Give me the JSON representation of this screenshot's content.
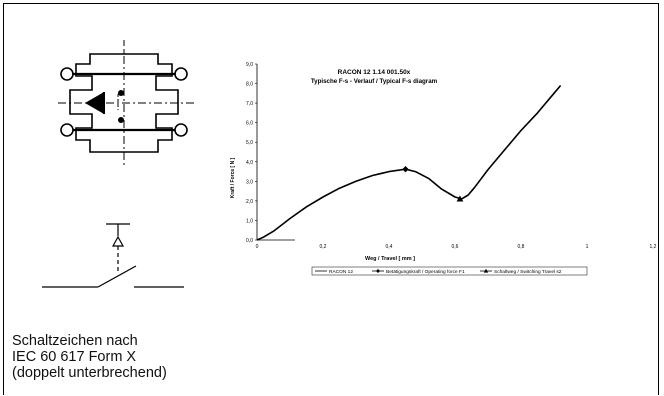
{
  "caption": {
    "lines": [
      "Schaltzeichen nach",
      "IEC 60 617 Form X",
      "(doppelt unterbrechend)"
    ]
  },
  "chart_data": {
    "type": "line",
    "title": "RACON 12  1.14 001.50x",
    "subtitle": "Typische F-s - Verlauf / Typical F-s diagram",
    "xlabel": "Weg / Travel [ mm ]",
    "ylabel": "Kraft / Force [ N ]",
    "xlim": [
      0,
      1.2
    ],
    "ylim": [
      0,
      9.0
    ],
    "x_ticks": [
      0,
      0.2,
      0.4,
      0.6,
      0.8,
      1,
      1.2
    ],
    "x_tick_labels": [
      "0",
      "0,2",
      "0,4",
      "0,6",
      "0,8",
      "1",
      "1,2"
    ],
    "y_ticks": [
      0,
      1,
      2,
      3,
      4,
      5,
      6,
      7,
      8,
      9
    ],
    "y_tick_labels": [
      "0,0",
      "1,0",
      "2,0",
      "3,0",
      "4,0",
      "5,0",
      "6,0",
      "7,0",
      "8,0",
      "9,0"
    ],
    "grid": false,
    "legend_position": "bottom",
    "series": [
      {
        "name": "RACON 12",
        "marker": "none",
        "x": [
          0,
          0.02,
          0.05,
          0.1,
          0.15,
          0.2,
          0.25,
          0.3,
          0.35,
          0.4,
          0.45,
          0.48,
          0.52,
          0.56,
          0.6,
          0.62,
          0.64,
          0.66,
          0.7,
          0.75,
          0.8,
          0.85,
          0.9,
          0.92
        ],
        "y": [
          0.0,
          0.15,
          0.45,
          1.1,
          1.7,
          2.2,
          2.65,
          3.0,
          3.3,
          3.5,
          3.62,
          3.5,
          3.15,
          2.6,
          2.2,
          2.1,
          2.3,
          2.7,
          3.6,
          4.6,
          5.6,
          6.5,
          7.5,
          7.9
        ]
      },
      {
        "name": "Betätigungskraft / Operating force F1",
        "marker": "diamond",
        "x": [
          0.45
        ],
        "y": [
          3.62
        ]
      },
      {
        "name": "Schaltweg / Switching Travel s2",
        "marker": "triangle",
        "x": [
          0.615
        ],
        "y": [
          2.1
        ]
      }
    ]
  }
}
